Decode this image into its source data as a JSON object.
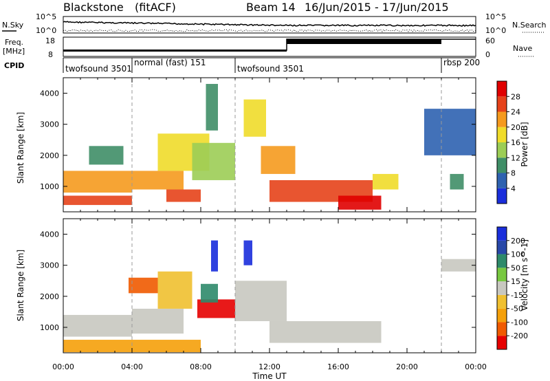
{
  "header": {
    "radar": "Blackstone",
    "processing": "(fitACF)",
    "beam": "Beam 14",
    "date_range": "16/Jun/2015 - 17/Jun/2015"
  },
  "status_panels": {
    "nsky_label": "N.Sky",
    "nsearch_label": "N.Search",
    "noise_left_ticks": [
      "10^5",
      "10^0"
    ],
    "noise_right_ticks": [
      "10^5",
      "10^0"
    ],
    "freq_label": "Freq.",
    "freq_unit": "[MHz]",
    "freq_ticks": [
      "18",
      "8"
    ],
    "nave_label": "Nave",
    "nave_ticks": [
      "60",
      "0"
    ],
    "cpid_label": "CPID"
  },
  "cpid_segments": [
    {
      "label": "twofsound 3501",
      "start": "00:00"
    },
    {
      "label": "normal (fast) 151",
      "start": "04:00"
    },
    {
      "label": "twofsound 3501",
      "start": "10:00"
    },
    {
      "label": "rbsp 200",
      "start": "22:00"
    }
  ],
  "chart_data": [
    {
      "type": "heatmap",
      "title": "",
      "xlabel": "",
      "ylabel": "Slant Range [km]",
      "x_range_hours": [
        0,
        24
      ],
      "ylim": [
        180,
        4500
      ],
      "y_ticks": [
        1000,
        2000,
        3000,
        4000
      ],
      "colorbar": {
        "label": "Power [dB]",
        "tick_labels": [
          "4",
          "8",
          "12",
          "16",
          "20",
          "24",
          "28"
        ],
        "range": [
          0,
          30
        ],
        "colors": [
          "#1a2edb",
          "#2e62b0",
          "#3f8e67",
          "#9ccd55",
          "#f0dc2a",
          "#f59a1e",
          "#e6421a",
          "#e00000"
        ]
      },
      "regions": [
        {
          "t0": 0.0,
          "t1": 4.0,
          "r0": 800,
          "r1": 1500,
          "level": 20
        },
        {
          "t0": 0.0,
          "t1": 4.0,
          "r0": 400,
          "r1": 700,
          "level": 26
        },
        {
          "t0": 1.5,
          "t1": 3.5,
          "r0": 1700,
          "r1": 2300,
          "level": 9
        },
        {
          "t0": 4.0,
          "t1": 7.0,
          "r0": 900,
          "r1": 1500,
          "level": 22
        },
        {
          "t0": 5.5,
          "t1": 8.5,
          "r0": 1500,
          "r1": 2700,
          "level": 18
        },
        {
          "t0": 7.5,
          "t1": 10.0,
          "r0": 1200,
          "r1": 2400,
          "level": 14
        },
        {
          "t0": 6.0,
          "t1": 8.0,
          "r0": 500,
          "r1": 900,
          "level": 24
        },
        {
          "t0": 8.3,
          "t1": 9.0,
          "r0": 2800,
          "r1": 4300,
          "level": 9
        },
        {
          "t0": 10.5,
          "t1": 11.8,
          "r0": 2600,
          "r1": 3800,
          "level": 15
        },
        {
          "t0": 11.5,
          "t1": 13.5,
          "r0": 1400,
          "r1": 2300,
          "level": 22
        },
        {
          "t0": 12.0,
          "t1": 18.0,
          "r0": 500,
          "r1": 1200,
          "level": 24
        },
        {
          "t0": 16.0,
          "t1": 18.5,
          "r0": 250,
          "r1": 700,
          "level": 28
        },
        {
          "t0": 18.0,
          "t1": 19.5,
          "r0": 900,
          "r1": 1400,
          "level": 16
        },
        {
          "t0": 21.0,
          "t1": 24.0,
          "r0": 2000,
          "r1": 3500,
          "level": 6
        },
        {
          "t0": 22.5,
          "t1": 23.3,
          "r0": 900,
          "r1": 1400,
          "level": 10
        }
      ]
    },
    {
      "type": "heatmap",
      "title": "",
      "xlabel": "Time UT",
      "ylabel": "Slant Range [km]",
      "x_range_hours": [
        0,
        24
      ],
      "x_tick_labels": [
        "00:00",
        "04:00",
        "08:00",
        "12:00",
        "16:00",
        "20:00",
        "00:00"
      ],
      "ylim": [
        180,
        4500
      ],
      "y_ticks": [
        1000,
        2000,
        3000,
        4000
      ],
      "colorbar": {
        "label": "Velocity [m s^-1]",
        "tick_labels": [
          "-200",
          "-100",
          "-50",
          "-15",
          "15",
          "50",
          "100",
          "200"
        ],
        "colors": [
          "#e60000",
          "#f05a00",
          "#f5a00a",
          "#f0c030",
          "#c8c8c0",
          "#78c840",
          "#2e8a6a",
          "#2848a8",
          "#1a2edb"
        ]
      },
      "regions": [
        {
          "t0": 0.0,
          "t1": 4.0,
          "r0": 700,
          "r1": 1400,
          "level": 0
        },
        {
          "t0": 3.8,
          "t1": 5.5,
          "r0": 2100,
          "r1": 2600,
          "level": -180
        },
        {
          "t0": 4.0,
          "t1": 7.0,
          "r0": 800,
          "r1": 1600,
          "level": 0
        },
        {
          "t0": 5.5,
          "t1": 7.5,
          "r0": 1600,
          "r1": 2800,
          "level": -40
        },
        {
          "t0": 7.8,
          "t1": 10.0,
          "r0": 1300,
          "r1": 1900,
          "level": -200
        },
        {
          "t0": 8.0,
          "t1": 9.0,
          "r0": 1800,
          "r1": 2400,
          "level": 60
        },
        {
          "t0": 8.6,
          "t1": 9.0,
          "r0": 2800,
          "r1": 3800,
          "level": 220
        },
        {
          "t0": 10.5,
          "t1": 11.0,
          "r0": 3000,
          "r1": 3800,
          "level": 220
        },
        {
          "t0": 10.0,
          "t1": 13.0,
          "r0": 1200,
          "r1": 2500,
          "level": 0
        },
        {
          "t0": 12.0,
          "t1": 18.5,
          "r0": 500,
          "r1": 1200,
          "level": 0
        },
        {
          "t0": 0.0,
          "t1": 8.0,
          "r0": 200,
          "r1": 600,
          "level": -50
        },
        {
          "t0": 22.0,
          "t1": 24.0,
          "r0": 2800,
          "r1": 3200,
          "level": 0
        }
      ]
    }
  ]
}
